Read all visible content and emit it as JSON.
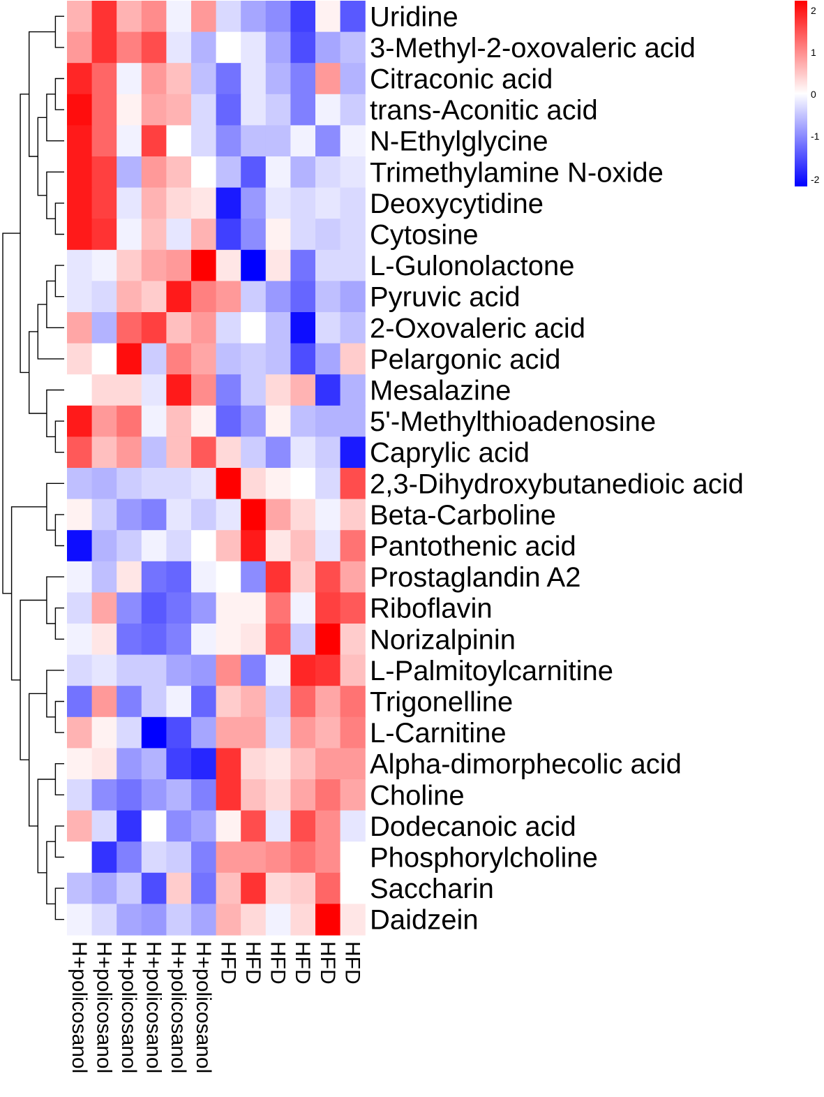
{
  "chart_data": {
    "type": "heatmap",
    "title": "",
    "xlabel": "",
    "ylabel": "",
    "columns": [
      "H+policosanol",
      "H+policosanol",
      "H+policosanol",
      "H+policosanol",
      "H+policosanol",
      "H+policosanol",
      "HFD",
      "HFD",
      "HFD",
      "HFD",
      "HFD",
      "HFD"
    ],
    "rows": [
      "Uridine",
      "3-Methyl-2-oxovaleric acid",
      "Citraconic acid",
      "trans-Aconitic acid",
      "N-Ethylglycine",
      "Trimethylamine N-oxide",
      "Deoxycytidine",
      "Cytosine",
      "L-Gulonolactone",
      "Pyruvic acid",
      "2-Oxovaleric acid",
      "Pelargonic acid",
      "Mesalazine",
      "5'-Methylthioadenosine",
      "Caprylic acid",
      "2,3-Dihydroxybutanedioic acid",
      "Beta-Carboline",
      "Pantothenic acid",
      "Prostaglandin A2",
      "Riboflavin",
      "Norizalpinin",
      "L-Palmitoylcarnitine",
      "Trigonelline",
      "L-Carnitine",
      "Alpha-dimorphecolic acid",
      "Choline",
      "Dodecanoic acid",
      "Phosphorylcholine",
      "Saccharin",
      "Daidzein"
    ],
    "values": [
      [
        0.6,
        1.6,
        0.6,
        0.9,
        -0.1,
        0.8,
        -0.3,
        -0.7,
        -0.9,
        -1.5,
        0.1,
        -1.3
      ],
      [
        0.8,
        1.6,
        1.0,
        1.4,
        -0.2,
        -0.6,
        0.0,
        -0.2,
        -0.7,
        -1.4,
        -0.7,
        -0.5
      ],
      [
        1.7,
        1.2,
        -0.1,
        0.8,
        0.5,
        -0.5,
        -1.1,
        -0.2,
        -0.6,
        -1.0,
        0.8,
        -0.6
      ],
      [
        1.9,
        1.2,
        0.1,
        0.7,
        0.6,
        -0.3,
        -1.2,
        -0.2,
        -0.4,
        -1.0,
        -0.1,
        -0.4
      ],
      [
        1.8,
        1.2,
        -0.1,
        1.5,
        0.0,
        -0.3,
        -0.9,
        -0.5,
        -0.5,
        -0.1,
        -0.9,
        -0.1
      ],
      [
        1.8,
        1.5,
        -0.6,
        0.8,
        0.5,
        0.0,
        -0.5,
        -1.3,
        -0.1,
        -0.6,
        -0.3,
        -0.2
      ],
      [
        1.8,
        1.5,
        -0.2,
        0.6,
        0.3,
        0.2,
        -1.8,
        -0.8,
        -0.2,
        -0.3,
        -0.2,
        -0.3
      ],
      [
        1.8,
        1.6,
        -0.1,
        0.5,
        -0.2,
        0.6,
        -1.5,
        -0.9,
        0.1,
        -0.3,
        -0.4,
        -0.3
      ],
      [
        -0.2,
        -0.1,
        0.4,
        0.7,
        0.8,
        2.0,
        0.2,
        -2.0,
        0.2,
        -1.1,
        -0.3,
        -0.3
      ],
      [
        -0.2,
        -0.3,
        0.6,
        0.4,
        1.8,
        1.0,
        0.8,
        -0.4,
        -0.8,
        -1.2,
        -0.5,
        -0.7
      ],
      [
        0.7,
        -0.6,
        1.2,
        1.5,
        0.5,
        0.8,
        -0.3,
        0.0,
        -0.5,
        -1.9,
        -0.3,
        -0.5
      ],
      [
        0.3,
        0.0,
        1.9,
        -0.4,
        1.0,
        0.7,
        -0.5,
        -0.4,
        -0.5,
        -1.4,
        -0.7,
        0.4
      ],
      [
        0.0,
        0.3,
        0.3,
        -0.2,
        1.8,
        0.9,
        -1.0,
        -0.4,
        0.3,
        0.6,
        -1.6,
        -0.6
      ],
      [
        1.8,
        0.8,
        1.1,
        -0.1,
        0.5,
        0.1,
        -1.2,
        -0.8,
        0.1,
        -0.5,
        -0.6,
        -0.6
      ],
      [
        1.3,
        0.5,
        0.8,
        -0.5,
        0.5,
        1.3,
        0.3,
        -0.4,
        -0.9,
        -0.2,
        -0.4,
        -1.8
      ],
      [
        -0.5,
        -0.6,
        -0.4,
        -0.3,
        -0.3,
        -0.2,
        2.0,
        0.3,
        0.1,
        0.0,
        -0.3,
        1.4
      ],
      [
        0.1,
        -0.4,
        -0.8,
        -1.0,
        -0.2,
        -0.4,
        -0.2,
        2.0,
        0.7,
        0.3,
        -0.1,
        0.4
      ],
      [
        -1.9,
        -0.6,
        -0.4,
        -0.1,
        -0.3,
        0.0,
        0.5,
        1.8,
        0.2,
        0.5,
        -0.2,
        1.1
      ],
      [
        -0.1,
        -0.5,
        0.2,
        -1.1,
        -1.2,
        -0.1,
        0.0,
        -0.9,
        1.6,
        0.4,
        1.4,
        0.7
      ],
      [
        -0.3,
        0.7,
        -0.9,
        -1.3,
        -1.1,
        -0.8,
        0.1,
        0.1,
        1.1,
        -0.1,
        1.5,
        1.3
      ],
      [
        -0.1,
        0.2,
        -1.1,
        -1.2,
        -1.0,
        -0.1,
        0.1,
        0.2,
        1.3,
        -0.4,
        2.0,
        0.4
      ],
      [
        -0.3,
        -0.2,
        -0.4,
        -0.4,
        -0.7,
        -0.8,
        0.9,
        -1.0,
        -0.1,
        1.7,
        1.6,
        0.5
      ],
      [
        -1.1,
        0.8,
        -1.0,
        -0.4,
        -0.1,
        -1.2,
        0.4,
        0.6,
        -0.4,
        1.2,
        0.7,
        1.1
      ],
      [
        0.6,
        0.1,
        -0.3,
        -2.0,
        -1.4,
        -0.7,
        0.7,
        0.7,
        -0.3,
        0.8,
        0.6,
        1.0
      ],
      [
        0.1,
        0.2,
        -0.8,
        -0.6,
        -1.5,
        -1.7,
        1.6,
        0.3,
        0.2,
        0.5,
        0.8,
        0.8
      ],
      [
        -0.3,
        -0.9,
        -1.1,
        -0.8,
        -0.6,
        -1.0,
        1.6,
        0.5,
        0.3,
        0.7,
        1.1,
        0.7
      ],
      [
        0.6,
        -0.3,
        -1.6,
        0.0,
        -0.9,
        -0.7,
        0.1,
        1.4,
        -0.2,
        1.4,
        0.9,
        -0.2
      ],
      [
        0.0,
        -1.6,
        -1.0,
        -0.3,
        -0.4,
        -1.0,
        0.8,
        0.8,
        0.9,
        1.1,
        0.9,
        0.0
      ],
      [
        -0.5,
        -0.7,
        -0.4,
        -1.4,
        0.4,
        -1.1,
        0.5,
        1.6,
        0.3,
        0.4,
        1.2,
        0.0
      ],
      [
        -0.1,
        -0.3,
        -0.7,
        -0.8,
        -0.4,
        -0.7,
        0.6,
        0.3,
        -0.1,
        0.3,
        2.0,
        0.2
      ]
    ],
    "color_scale": {
      "low": "#0000FF",
      "mid": "#FFFFFF",
      "high": "#FF0000",
      "range": [
        -2,
        2
      ],
      "ticks": [
        "2",
        "1",
        "0",
        "-1",
        "-2"
      ]
    },
    "row_dendrogram": true,
    "legend_placement": "top-right"
  }
}
